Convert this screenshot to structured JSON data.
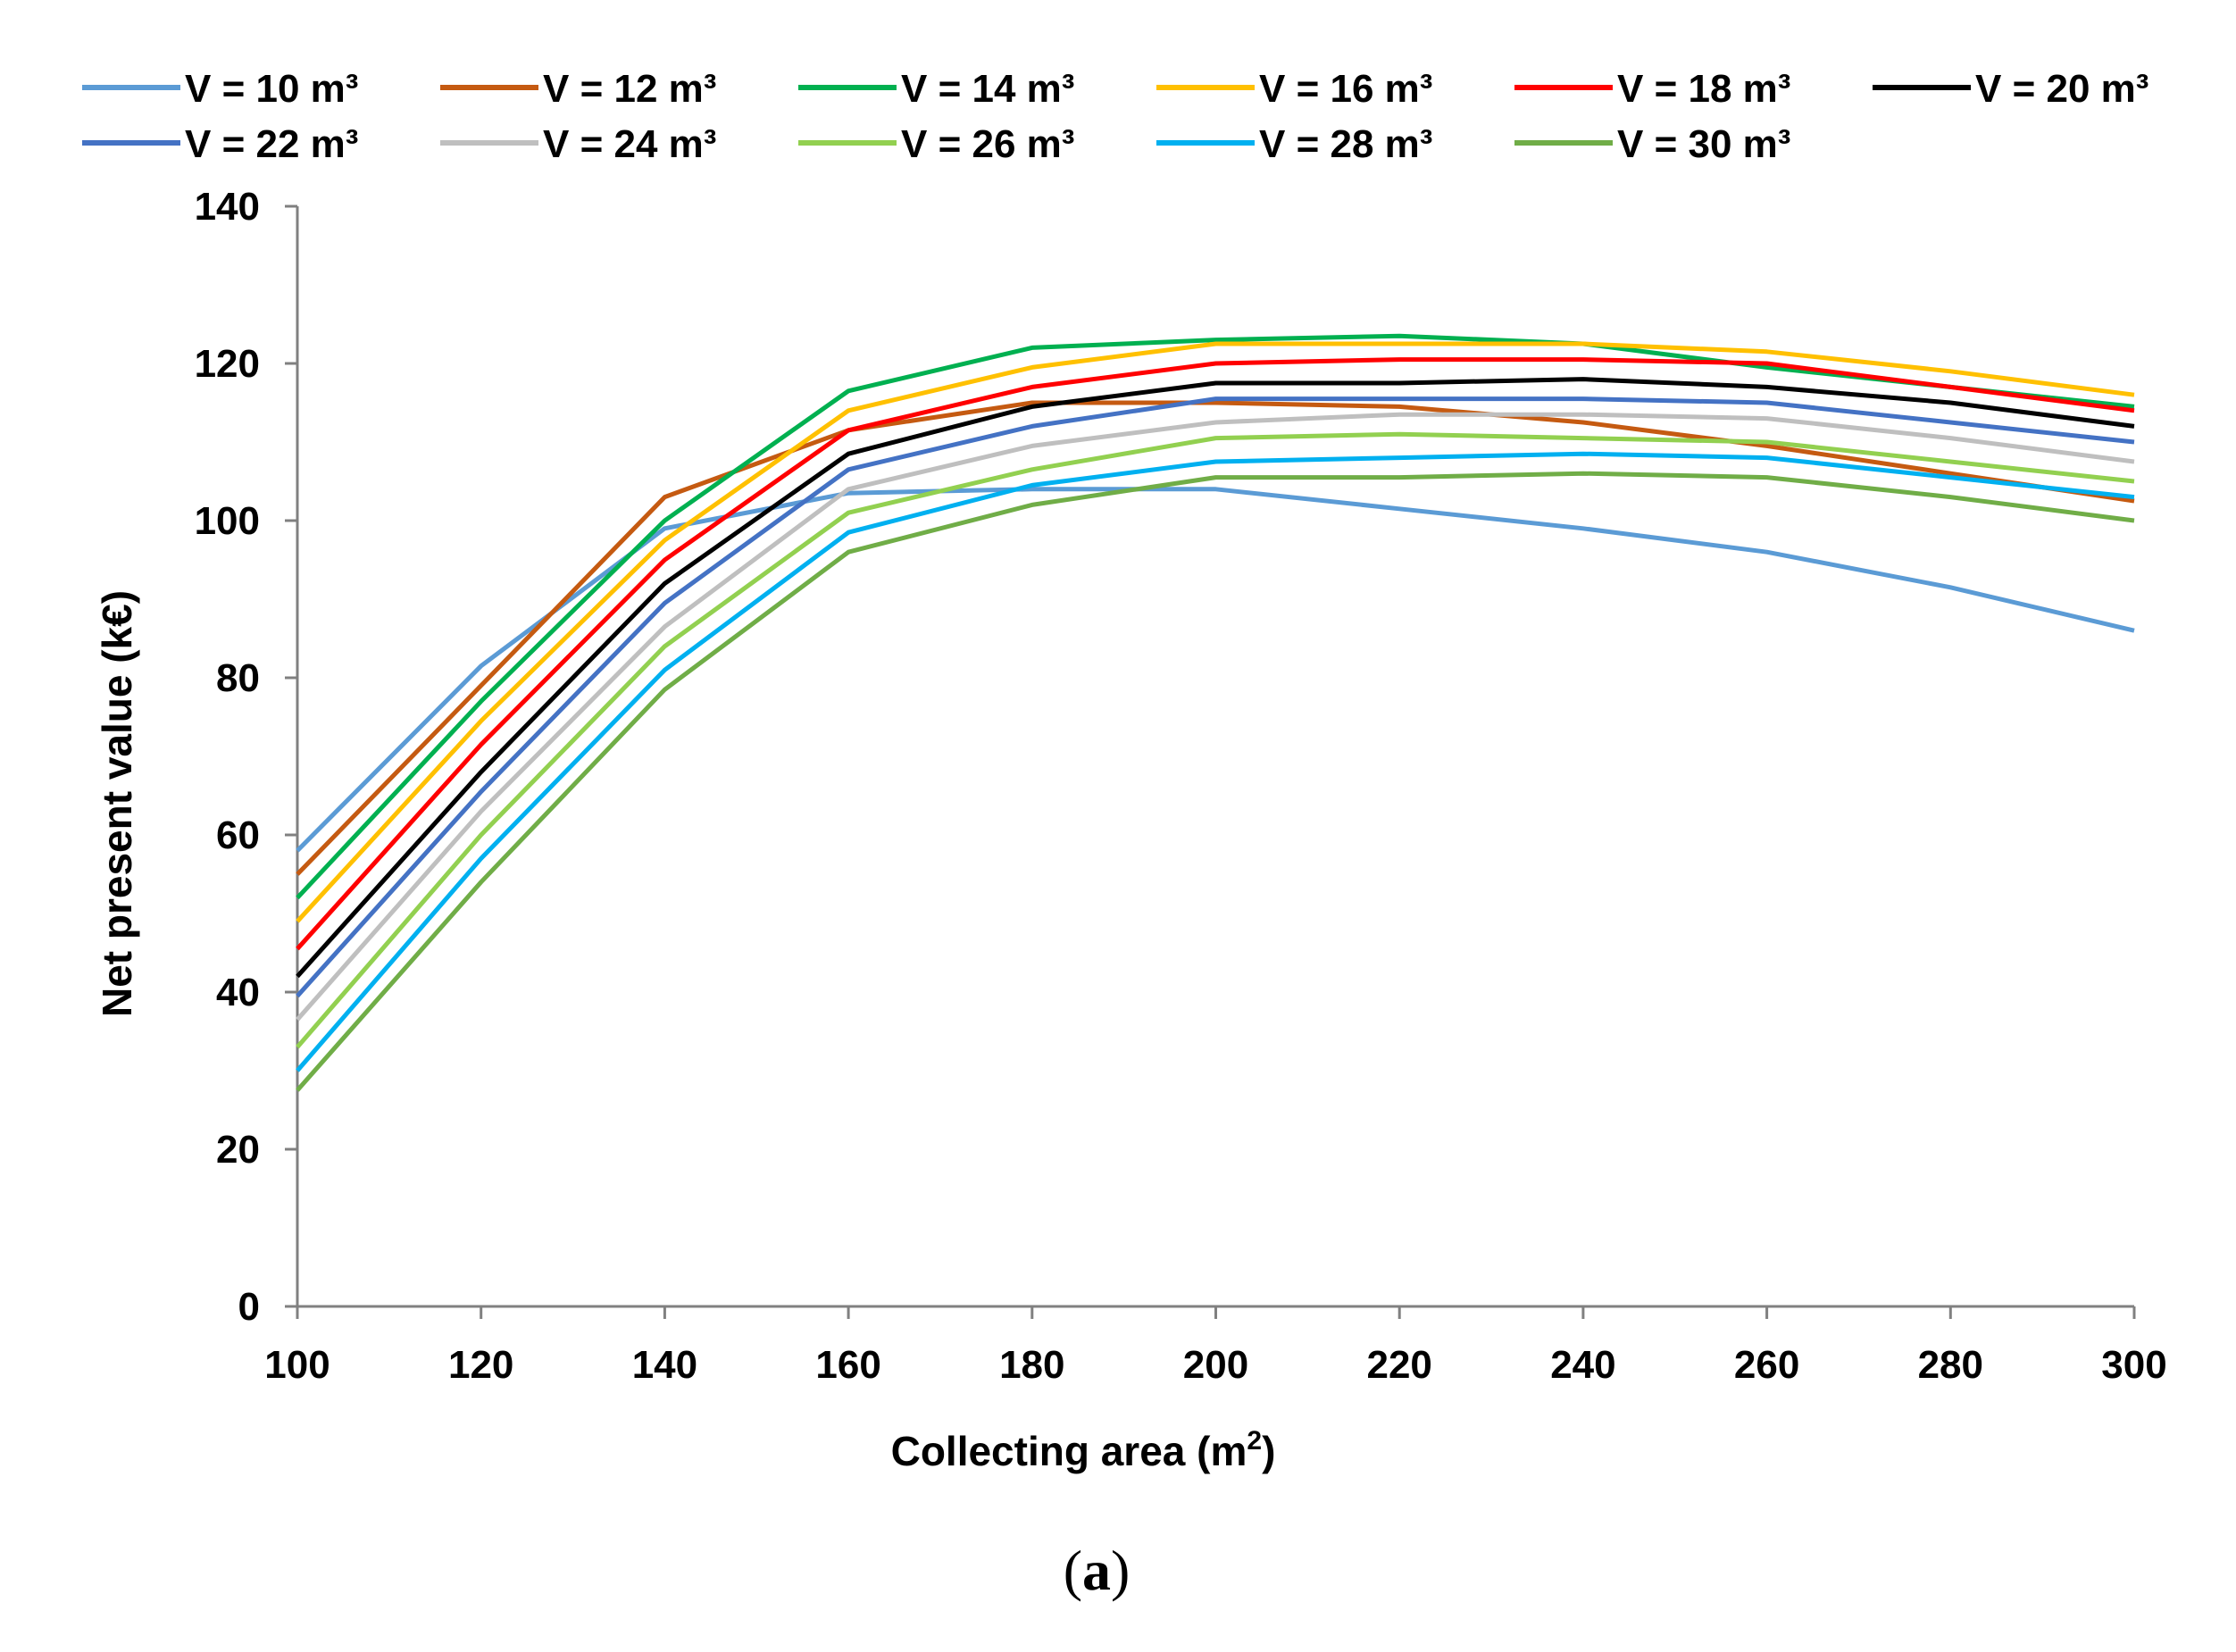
{
  "chart_data": {
    "type": "line",
    "title": "",
    "xlabel": "Collecting area (m",
    "xlabel_sup": "2",
    "xlabel_end": ")",
    "ylabel": "Net present value (k€)",
    "caption_open": "(",
    "caption_letter": "a",
    "caption_close": ")",
    "xlim": [
      100,
      300
    ],
    "ylim": [
      0,
      140
    ],
    "x_ticks": [
      "100",
      "120",
      "140",
      "160",
      "180",
      "200",
      "220",
      "240",
      "260",
      "280",
      "300"
    ],
    "y_ticks": [
      "0",
      "20",
      "40",
      "60",
      "80",
      "100",
      "120",
      "140"
    ],
    "x": [
      100,
      120,
      140,
      160,
      180,
      200,
      220,
      240,
      260,
      280,
      300
    ],
    "legend_position": "top",
    "series": [
      {
        "name": "V = 10 m³",
        "color": "#5B9BD5",
        "values": [
          58,
          81.5,
          99,
          103.5,
          104,
          104,
          101.5,
          99,
          96,
          91.5,
          86
        ]
      },
      {
        "name": "V = 12 m³",
        "color": "#C55A11",
        "values": [
          55,
          79,
          103,
          111.5,
          115,
          115,
          114.5,
          112.5,
          109.5,
          106,
          102.5
        ]
      },
      {
        "name": "V = 14 m³",
        "color": "#00B050",
        "values": [
          52,
          77,
          100,
          116.5,
          122,
          123,
          123.5,
          122.5,
          119.5,
          117,
          114.5
        ]
      },
      {
        "name": "V = 16 m³",
        "color": "#FFC000",
        "values": [
          49,
          74.5,
          97.5,
          114,
          119.5,
          122.5,
          122.5,
          122.5,
          121.5,
          119,
          116
        ]
      },
      {
        "name": "V = 18 m³",
        "color": "#FF0000",
        "values": [
          45.5,
          71.5,
          95,
          111.5,
          117,
          120,
          120.5,
          120.5,
          120,
          117,
          114
        ]
      },
      {
        "name": "V = 20 m³",
        "color": "#000000",
        "values": [
          42,
          68,
          92,
          108.5,
          114.5,
          117.5,
          117.5,
          118,
          117,
          115,
          112
        ]
      },
      {
        "name": "V = 22 m³",
        "color": "#4472C4",
        "values": [
          39.5,
          65.5,
          89.5,
          106.5,
          112,
          115.5,
          115.5,
          115.5,
          115,
          112.5,
          110
        ]
      },
      {
        "name": "V = 24 m³",
        "color": "#BFBFBF",
        "values": [
          36.5,
          63,
          86.5,
          104,
          109.5,
          112.5,
          113.5,
          113.5,
          113,
          110.5,
          107.5
        ]
      },
      {
        "name": "V = 26 m³",
        "color": "#92D050",
        "values": [
          33,
          60,
          84,
          101,
          106.5,
          110.5,
          111,
          110.5,
          110,
          107.5,
          105
        ]
      },
      {
        "name": "V = 28 m³",
        "color": "#00B0F0",
        "values": [
          30,
          57,
          81,
          98.5,
          104.5,
          107.5,
          108,
          108.5,
          108,
          105.5,
          103
        ]
      },
      {
        "name": "V = 30 m³",
        "color": "#70AD47",
        "values": [
          27.5,
          54,
          78.5,
          96,
          102,
          105.5,
          105.5,
          106,
          105.5,
          103,
          100
        ]
      }
    ]
  }
}
